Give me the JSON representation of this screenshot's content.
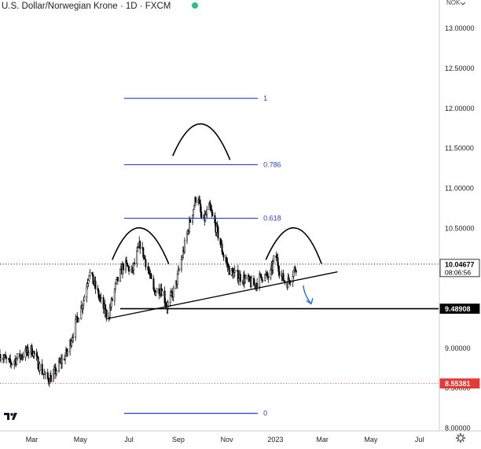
{
  "header": {
    "title": "U.S. Dollar/Norwegian Krone · 1D · FXCM",
    "currency": "NOK"
  },
  "colors": {
    "candle": "#000000",
    "fib": "#2b3bd6",
    "fib_label": "#2b3bd6",
    "axis_text": "#222222",
    "red_level": "#e53935",
    "arrow": "#1e6fd9",
    "grid": "#e6e6e6"
  },
  "logo": {
    "text": "TV",
    "icon": "tradingview-logo-icon"
  },
  "settings_icon": "gear-icon",
  "chart_data": {
    "type": "candlestick",
    "title": "U.S. Dollar/Norwegian Krone · 1D · FXCM",
    "x_axis": {
      "ticks": [
        {
          "label": "Mar",
          "date": "2022-03-01"
        },
        {
          "label": "May",
          "date": "2022-05-01"
        },
        {
          "label": "Jul",
          "date": "2022-07-01"
        },
        {
          "label": "Sep",
          "date": "2022-09-01"
        },
        {
          "label": "Nov",
          "date": "2022-11-01"
        },
        {
          "label": "2023",
          "date": "2023-01-01"
        },
        {
          "label": "Mar",
          "date": "2023-03-01"
        },
        {
          "label": "May",
          "date": "2023-05-01"
        },
        {
          "label": "Jul",
          "date": "2023-07-01"
        }
      ],
      "range": [
        "2022-01-20",
        "2023-07-25"
      ]
    },
    "y_axis": {
      "ticks": [
        "13.00000",
        "12.50000",
        "12.00000",
        "11.50000",
        "11.00000",
        "10.50000",
        "10.00000",
        "9.50000",
        "9.00000",
        "8.50000",
        "8.00000"
      ],
      "range": [
        7.97,
        13.35
      ],
      "position": "right"
    },
    "price_series": [
      [
        "2022-01-20",
        8.92
      ],
      [
        "2022-02-01",
        8.8
      ],
      [
        "2022-02-15",
        8.9
      ],
      [
        "2022-03-01",
        8.98
      ],
      [
        "2022-03-10",
        8.78
      ],
      [
        "2022-03-20",
        8.6
      ],
      [
        "2022-03-28",
        8.65
      ],
      [
        "2022-04-05",
        8.8
      ],
      [
        "2022-04-15",
        8.95
      ],
      [
        "2022-04-25",
        9.3
      ],
      [
        "2022-05-05",
        9.6
      ],
      [
        "2022-05-12",
        9.95
      ],
      [
        "2022-05-20",
        9.75
      ],
      [
        "2022-06-01",
        9.45
      ],
      [
        "2022-06-05",
        9.4
      ],
      [
        "2022-06-15",
        9.8
      ],
      [
        "2022-06-25",
        10.05
      ],
      [
        "2022-07-05",
        9.95
      ],
      [
        "2022-07-15",
        10.3
      ],
      [
        "2022-07-25",
        9.98
      ],
      [
        "2022-08-01",
        9.7
      ],
      [
        "2022-08-10",
        9.75
      ],
      [
        "2022-08-18",
        9.52
      ],
      [
        "2022-08-28",
        9.75
      ],
      [
        "2022-09-05",
        10.1
      ],
      [
        "2022-09-15",
        10.55
      ],
      [
        "2022-09-25",
        10.95
      ],
      [
        "2022-10-01",
        10.55
      ],
      [
        "2022-10-10",
        10.75
      ],
      [
        "2022-10-20",
        10.45
      ],
      [
        "2022-10-28",
        10.15
      ],
      [
        "2022-11-05",
        9.95
      ],
      [
        "2022-11-15",
        9.9
      ],
      [
        "2022-11-25",
        9.85
      ],
      [
        "2022-12-05",
        9.78
      ],
      [
        "2022-12-15",
        9.9
      ],
      [
        "2022-12-25",
        9.88
      ],
      [
        "2023-01-01",
        10.18
      ],
      [
        "2023-01-08",
        9.9
      ],
      [
        "2023-01-15",
        9.8
      ],
      [
        "2023-01-22",
        9.92
      ],
      [
        "2023-01-29",
        10.05
      ]
    ],
    "horizontal_levels": [
      {
        "value": 9.48908,
        "label": "9.48908",
        "style": "solid",
        "color": "#000000"
      },
      {
        "value": 8.55381,
        "label": "8.55381",
        "style": "dotted",
        "color": "#e53935"
      },
      {
        "value": 10.04677,
        "label": "10.04677",
        "style": "dotted",
        "color": "#000000",
        "extra": "08:06:56"
      }
    ],
    "fibonacci": {
      "start_date": "2022-06-25",
      "end_date": "2022-12-10",
      "levels": [
        {
          "ratio": "1",
          "value": 12.12
        },
        {
          "ratio": "0.786",
          "value": 11.29
        },
        {
          "ratio": "0.618",
          "value": 10.62
        },
        {
          "ratio": "0",
          "value": 8.18
        }
      ]
    },
    "trendline": {
      "from": [
        "2022-06-02",
        9.36
      ],
      "to": [
        "2023-03-20",
        9.95
      ]
    },
    "arcs": [
      {
        "from": [
          "2022-06-10",
          10.1
        ],
        "peak": [
          "2022-07-15",
          10.5
        ],
        "to": [
          "2022-08-20",
          10.05
        ]
      },
      {
        "from": [
          "2022-08-25",
          11.4
        ],
        "peak": [
          "2022-09-30",
          11.8
        ],
        "to": [
          "2022-11-05",
          11.35
        ]
      },
      {
        "from": [
          "2022-12-20",
          10.1
        ],
        "peak": [
          "2023-01-25",
          10.5
        ],
        "to": [
          "2023-02-28",
          10.05
        ]
      }
    ],
    "arrow": {
      "from": [
        "2023-02-05",
        9.78
      ],
      "to": [
        "2023-02-15",
        9.55
      ],
      "direction": "down"
    }
  }
}
